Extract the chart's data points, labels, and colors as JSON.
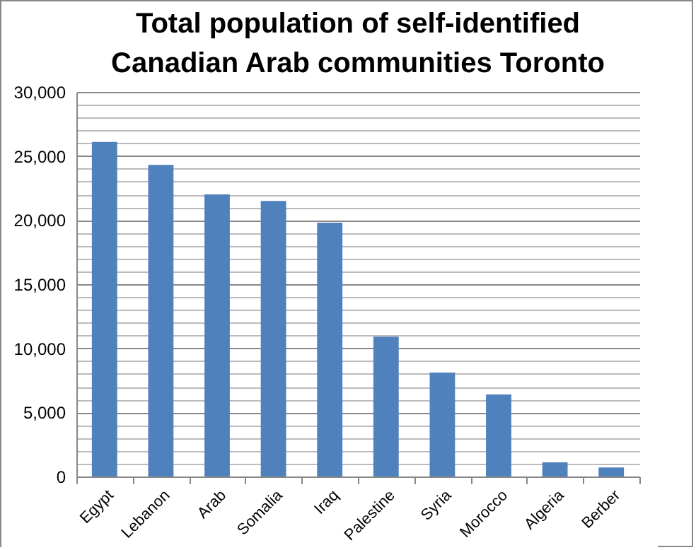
{
  "chart_data": {
    "type": "bar",
    "title": "Total population of self-identified Canadian Arab communities Toronto",
    "categories": [
      "Egypt",
      "Lebanon",
      "Arab",
      "Somalia",
      "Iraq",
      "Palestine",
      "Syria",
      "Morocco",
      "Algeria",
      "Berber"
    ],
    "values": [
      26100,
      24300,
      22000,
      21500,
      19800,
      10900,
      8100,
      6400,
      1100,
      700
    ],
    "color": "#4f81bd",
    "ylim": [
      0,
      30000
    ],
    "yticks": [
      0,
      {
        "value": 1000,
        "label": null
      },
      {
        "value": 2000,
        "label": null
      },
      {
        "value": 3000,
        "label": null
      },
      {
        "value": 4000,
        "label": null
      },
      {
        "value": 5000,
        "label": "5,000"
      },
      {
        "value": 6000,
        "label": null
      },
      {
        "value": 7000,
        "label": null
      },
      {
        "value": 8000,
        "label": null
      },
      {
        "value": 9000,
        "label": null
      },
      {
        "value": 10000,
        "label": "10,000"
      },
      {
        "value": 11000,
        "label": null
      },
      {
        "value": 12000,
        "label": null
      },
      {
        "value": 13000,
        "label": null
      },
      {
        "value": 14000,
        "label": null
      },
      {
        "value": 15000,
        "label": "15,000"
      },
      {
        "value": 16000,
        "label": null
      },
      {
        "value": 17000,
        "label": null
      },
      {
        "value": 18000,
        "label": null
      },
      {
        "value": 19000,
        "label": null
      },
      {
        "value": 20000,
        "label": "20,000"
      },
      {
        "value": 21000,
        "label": null
      },
      {
        "value": 22000,
        "label": null
      },
      {
        "value": 23000,
        "label": null
      },
      {
        "value": 24000,
        "label": null
      },
      {
        "value": 25000,
        "label": "25,000"
      },
      {
        "value": 26000,
        "label": null
      },
      {
        "value": 27000,
        "label": null
      },
      {
        "value": 28000,
        "label": null
      },
      {
        "value": 29000,
        "label": null
      },
      {
        "value": 30000,
        "label": "30,000"
      }
    ],
    "grid": true
  }
}
